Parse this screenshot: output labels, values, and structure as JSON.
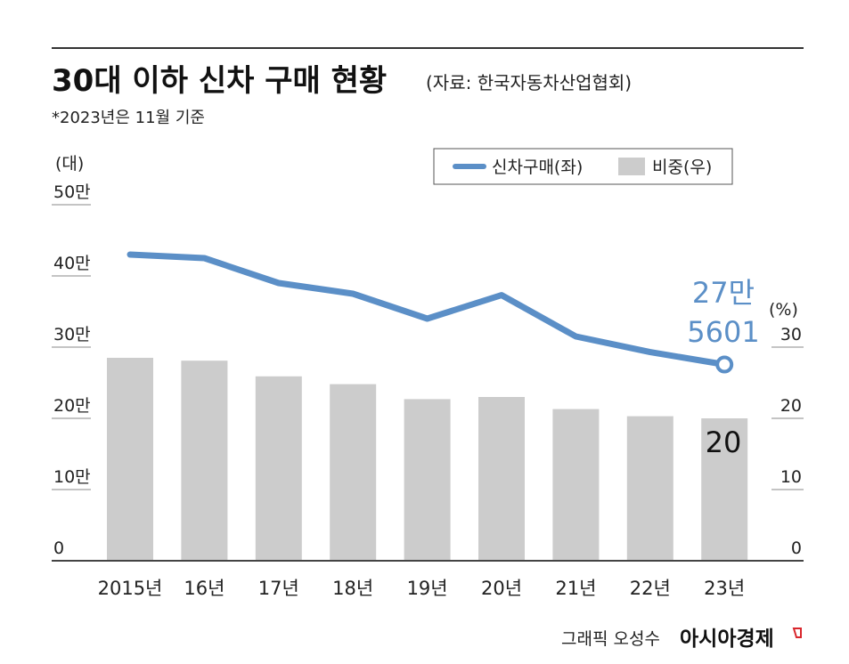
{
  "header": {
    "title": "30대 이하 신차 구매 현황",
    "source": "(자료: 한국자동차산업협회)",
    "note": "*2023년은 11월 기준"
  },
  "legend": {
    "line_label": "신차구매(좌)",
    "bar_label": "비중(우)"
  },
  "colors": {
    "line": "#5b8fc7",
    "bar": "#cccccc",
    "rule": "#333333",
    "brand_mark": "#d9262c"
  },
  "chart_data": {
    "type": "bar+line",
    "categories": [
      "2015년",
      "16년",
      "17년",
      "18년",
      "19년",
      "20년",
      "21년",
      "22년",
      "23년"
    ],
    "series": [
      {
        "name": "신차구매(좌)",
        "type": "line",
        "axis": "left",
        "values": [
          430000,
          425000,
          390000,
          375000,
          340000,
          373000,
          315000,
          293000,
          275601
        ]
      },
      {
        "name": "비중(우)",
        "type": "bar",
        "axis": "right",
        "values": [
          28.5,
          28.1,
          25.9,
          24.8,
          22.7,
          23.0,
          21.3,
          20.3,
          20
        ]
      }
    ],
    "y_left": {
      "unit": "(대)",
      "range": [
        0,
        500000
      ],
      "ticks": [
        0,
        100000,
        200000,
        300000,
        400000,
        500000
      ],
      "tick_labels": [
        "0",
        "10만",
        "20만",
        "30만",
        "40만",
        "50만"
      ]
    },
    "y_right": {
      "unit": "(%)",
      "range": [
        0,
        50
      ],
      "ticks": [
        0,
        10,
        20,
        30
      ],
      "tick_labels": [
        "0",
        "10",
        "20",
        "30"
      ]
    },
    "annotations": {
      "line_last_line1": "27만",
      "line_last_line2": "5601",
      "bar_last": "20"
    },
    "legend_position": "top-right",
    "grid": false
  },
  "footer": {
    "credit": "그래픽 오성수",
    "brand": "아시아경제"
  }
}
